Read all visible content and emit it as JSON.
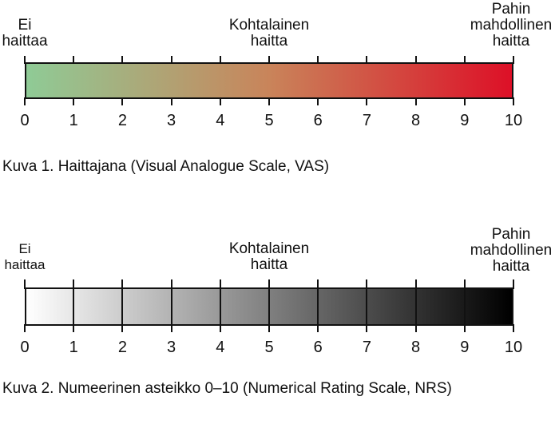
{
  "vas": {
    "label_left": "Ei\nhaittaa",
    "label_mid": "Kohtalainen\nhaitta",
    "label_right": "Pahin\nmahdollinen\nhaitta",
    "caption": "Kuva 1. Haittajana (Visual Analogue Scale, VAS)",
    "gradient_start": "#8fcb96",
    "gradient_mid": "#c9845a",
    "gradient_end": "#dd1027"
  },
  "nrs": {
    "label_left": "Ei\nhaittaa",
    "label_mid": "Kohtalainen\nhaitta",
    "label_right": "Pahin\nmahdollinen\nhaitta",
    "caption": "Kuva 2. Numeerinen asteikko 0–10 (Numerical Rating Scale, NRS)",
    "gradient_start": "#ffffff",
    "gradient_end": "#000000"
  },
  "ticks": [
    "0",
    "1",
    "2",
    "3",
    "4",
    "5",
    "6",
    "7",
    "8",
    "9",
    "10"
  ]
}
